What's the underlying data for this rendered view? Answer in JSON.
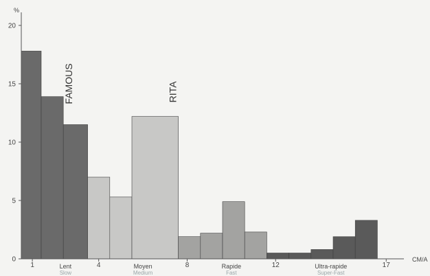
{
  "chart_data": {
    "type": "bar",
    "ylabel": "%",
    "xunit": "CM/A",
    "ylim": [
      0,
      20
    ],
    "yticks": [
      0,
      5,
      10,
      15,
      20
    ],
    "xticks": [
      {
        "value": 1,
        "label": "1"
      },
      {
        "value": 4,
        "label": "4"
      },
      {
        "value": 8,
        "label": "8"
      },
      {
        "value": 12,
        "label": "12"
      },
      {
        "value": 17,
        "label": "17"
      }
    ],
    "speed_classes": [
      {
        "label": "Lent",
        "sublabel": "Slow",
        "center": 2.5
      },
      {
        "label": "Moyen",
        "sublabel": "Medium",
        "center": 6
      },
      {
        "label": "Rapide",
        "sublabel": "Fast",
        "center": 10
      },
      {
        "label": "Ultra-rapide",
        "sublabel": "Super-Fast",
        "center": 14.5
      }
    ],
    "annotations": [
      {
        "text": "FAMOUS",
        "x": 2.8,
        "y": 15
      },
      {
        "text": "RITA",
        "x": 7.5,
        "y": 14.3
      }
    ],
    "bins": [
      {
        "x0": 0.5,
        "x1": 1.4,
        "value": 17.8,
        "color": "#6a6a6a"
      },
      {
        "x0": 1.4,
        "x1": 2.4,
        "value": 13.9,
        "color": "#6a6a6a"
      },
      {
        "x0": 2.4,
        "x1": 3.5,
        "value": 11.5,
        "color": "#6a6a6a"
      },
      {
        "x0": 3.5,
        "x1": 4.5,
        "value": 7.0,
        "color": "#c8c8c6"
      },
      {
        "x0": 4.5,
        "x1": 5.5,
        "value": 5.3,
        "color": "#c8c8c6"
      },
      {
        "x0": 5.5,
        "x1": 7.6,
        "value": 12.2,
        "color": "#c8c8c6"
      },
      {
        "x0": 7.6,
        "x1": 8.6,
        "value": 1.9,
        "color": "#a3a3a1"
      },
      {
        "x0": 8.6,
        "x1": 9.6,
        "value": 2.2,
        "color": "#a3a3a1"
      },
      {
        "x0": 9.6,
        "x1": 10.6,
        "value": 4.9,
        "color": "#a3a3a1"
      },
      {
        "x0": 10.6,
        "x1": 11.6,
        "value": 2.3,
        "color": "#a3a3a1"
      },
      {
        "x0": 11.6,
        "x1": 12.6,
        "value": 0.5,
        "color": "#5a5a5a"
      },
      {
        "x0": 12.6,
        "x1": 13.6,
        "value": 0.5,
        "color": "#5a5a5a"
      },
      {
        "x0": 13.6,
        "x1": 14.6,
        "value": 0.8,
        "color": "#5a5a5a"
      },
      {
        "x0": 14.6,
        "x1": 15.6,
        "value": 1.9,
        "color": "#5a5a5a"
      },
      {
        "x0": 15.6,
        "x1": 16.6,
        "value": 3.3,
        "color": "#5a5a5a"
      }
    ]
  }
}
